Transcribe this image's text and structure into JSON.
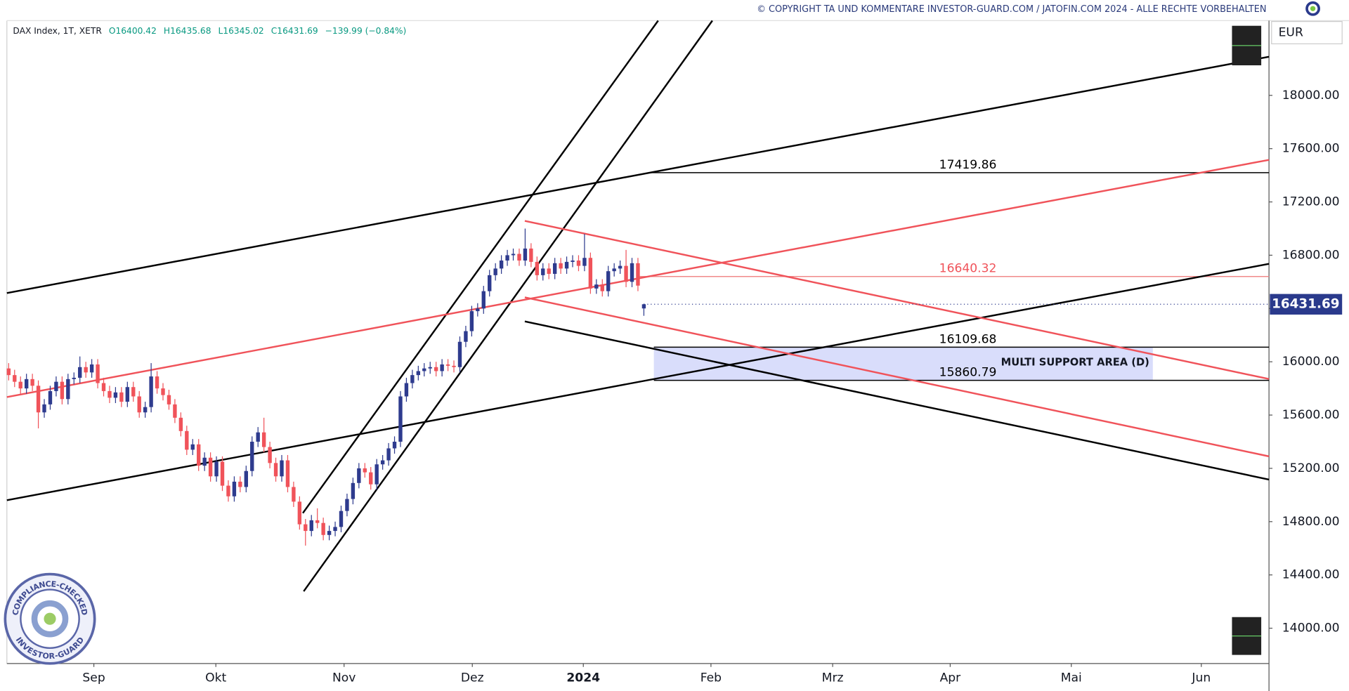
{
  "chart_data": {
    "type": "candlestick",
    "header": {
      "symbol": "DAX Index, 1T, XETR",
      "open": "O16400.42",
      "high": "H16435.68",
      "low": "L16345.02",
      "close": "C16431.69",
      "change": "−139.99 (−0.84%)"
    },
    "copyright": "© COPYRIGHT TA UND KOMMENTARE INVESTOR-GUARD.COM / JATOFIN.COM 2024 - ALLE RECHTE VORBEHALTEN",
    "currency": "EUR",
    "annotation": "MULTI SUPPORT AREA (D)",
    "badge": {
      "top": "COMPLIANCE-CHECKED",
      "bottom": "INVESTOR-GUARD"
    },
    "up_color": "#2e3b8e",
    "down_color": "#f0535a",
    "grid": false,
    "open": [
      15950,
      15900,
      15850,
      15800,
      15870,
      15820,
      15620,
      15680,
      15780,
      15850,
      15720,
      15870,
      15880,
      15960,
      15920,
      15980,
      15840,
      15780,
      15730,
      15770,
      15700,
      15810,
      15740,
      15620,
      15660,
      15890,
      15800,
      15750,
      15680,
      15580,
      15480,
      15340,
      15380,
      15220,
      15280,
      15140,
      15250,
      15070,
      14990,
      15100,
      15060,
      15180,
      15400,
      15470,
      15360,
      15240,
      15140,
      15260,
      15060,
      14950,
      14780,
      14730,
      14810,
      14790,
      14700,
      14730,
      14760,
      14880,
      14970,
      15090,
      15200,
      15170,
      15080,
      15230,
      15260,
      15350,
      15400,
      15740,
      15840,
      15900,
      15930,
      15950,
      15960,
      15930,
      15980,
      15970,
      15960,
      16150,
      16230,
      16380,
      16400,
      16530,
      16650,
      16700,
      16760,
      16800,
      16810,
      16760,
      16850,
      16750,
      16650,
      16700,
      16660,
      16740,
      16700,
      16750,
      16760,
      16720,
      16780,
      16550,
      16580,
      16530,
      16680,
      16700,
      16720,
      16600,
      16740,
      16400.42
    ],
    "high": [
      15990,
      15940,
      15890,
      15910,
      15910,
      15860,
      15720,
      15820,
      15890,
      15890,
      15910,
      15920,
      16040,
      16000,
      16020,
      16020,
      15880,
      15820,
      15810,
      15810,
      15850,
      15850,
      15780,
      15700,
      15990,
      15930,
      15840,
      15790,
      15720,
      15620,
      15520,
      15420,
      15420,
      15320,
      15320,
      15290,
      15290,
      15110,
      15140,
      15140,
      15220,
      15440,
      15510,
      15580,
      15400,
      15280,
      15300,
      15300,
      15100,
      14990,
      14820,
      14850,
      14900,
      14830,
      14770,
      14800,
      14920,
      15010,
      15130,
      15240,
      15240,
      15210,
      15270,
      15300,
      15390,
      15440,
      15780,
      15880,
      15940,
      15970,
      15990,
      16000,
      16000,
      16020,
      16020,
      16010,
      16190,
      16270,
      16420,
      16440,
      16570,
      16690,
      16740,
      16800,
      16840,
      16850,
      16850,
      17000,
      16890,
      16790,
      16740,
      16740,
      16780,
      16780,
      16790,
      16800,
      16800,
      16960,
      16820,
      16620,
      16620,
      16720,
      16740,
      16760,
      16840,
      16780,
      16780,
      16435.68
    ],
    "low": [
      15860,
      15810,
      15760,
      15760,
      15780,
      15500,
      15580,
      15640,
      15740,
      15680,
      15680,
      15830,
      15840,
      15880,
      15880,
      15800,
      15740,
      15690,
      15690,
      15660,
      15660,
      15700,
      15580,
      15580,
      15620,
      15760,
      15710,
      15640,
      15540,
      15440,
      15300,
      15300,
      15180,
      15180,
      15100,
      15100,
      15030,
      14950,
      14950,
      15020,
      15020,
      15140,
      15360,
      15320,
      15200,
      15100,
      15100,
      15020,
      14910,
      14740,
      14620,
      14690,
      14750,
      14660,
      14660,
      14690,
      14720,
      14840,
      14930,
      15050,
      15130,
      15040,
      15040,
      15190,
      15220,
      15310,
      15360,
      15700,
      15800,
      15860,
      15890,
      15910,
      15890,
      15890,
      15930,
      15920,
      15920,
      16110,
      16190,
      16340,
      16360,
      16490,
      16610,
      16660,
      16720,
      16760,
      16720,
      16720,
      16710,
      16610,
      16610,
      16620,
      16620,
      16660,
      16660,
      16710,
      16680,
      16680,
      16510,
      16510,
      16490,
      16490,
      16640,
      16660,
      16560,
      16560,
      16530,
      16345.02
    ],
    "close": [
      15900,
      15850,
      15800,
      15870,
      15820,
      15620,
      15680,
      15780,
      15850,
      15720,
      15870,
      15880,
      15960,
      15920,
      15980,
      15840,
      15780,
      15730,
      15770,
      15700,
      15810,
      15740,
      15620,
      15660,
      15890,
      15800,
      15750,
      15680,
      15580,
      15480,
      15340,
      15380,
      15220,
      15280,
      15140,
      15250,
      15070,
      14990,
      15100,
      15060,
      15180,
      15400,
      15470,
      15360,
      15240,
      15140,
      15260,
      15060,
      14950,
      14780,
      14730,
      14810,
      14790,
      14700,
      14730,
      14760,
      14880,
      14970,
      15090,
      15200,
      15170,
      15080,
      15230,
      15260,
      15350,
      15400,
      15740,
      15840,
      15900,
      15930,
      15950,
      15960,
      15930,
      15980,
      15970,
      15960,
      16150,
      16230,
      16380,
      16400,
      16530,
      16650,
      16700,
      16760,
      16800,
      16810,
      16760,
      16850,
      16750,
      16650,
      16700,
      16660,
      16740,
      16700,
      16750,
      16760,
      16720,
      16780,
      16550,
      16580,
      16530,
      16680,
      16700,
      16720,
      16600,
      16740,
      16571.68,
      16431.69
    ],
    "xlim": [
      -0.3,
      212.3
    ],
    "xticks": [
      {
        "value": 14.35,
        "label": "Sep"
      },
      {
        "value": 34.9,
        "label": "Okt"
      },
      {
        "value": 56.5,
        "label": "Nov"
      },
      {
        "value": 78.1,
        "label": "Dez"
      },
      {
        "value": 96.8,
        "label": "2024"
      },
      {
        "value": 118.3,
        "label": "Feb"
      },
      {
        "value": 138.8,
        "label": "Mrz"
      },
      {
        "value": 158.6,
        "label": "Apr"
      },
      {
        "value": 179,
        "label": "Mai"
      },
      {
        "value": 200.9,
        "label": "Jun"
      }
    ],
    "ylim": [
      13735,
      18561
    ],
    "yticks": [
      {
        "value": 14000,
        "label": "14000.00"
      },
      {
        "value": 14400,
        "label": "14400.00"
      },
      {
        "value": 14800,
        "label": "14800.00"
      },
      {
        "value": 15200,
        "label": "15200.00"
      },
      {
        "value": 15600,
        "label": "15600.00"
      },
      {
        "value": 16000,
        "label": "16000.00"
      },
      {
        "value": 16400,
        "label": "16400.00"
      },
      {
        "value": 16800,
        "label": "16800.00"
      },
      {
        "value": 17200,
        "label": "17200.00"
      },
      {
        "value": 17600,
        "label": "17600.00"
      },
      {
        "value": 18000,
        "label": "18000.00"
      }
    ],
    "levels": [
      17419.86,
      16640.32,
      16109.68,
      15860.79
    ],
    "level_colors": [
      "#000000",
      "#f08a8a",
      "#000000",
      "#000000"
    ],
    "level_label_colors": [
      "#000000",
      "#f0535a",
      "#000000",
      "#000000"
    ],
    "support_color": "#d9ddfb"
  }
}
